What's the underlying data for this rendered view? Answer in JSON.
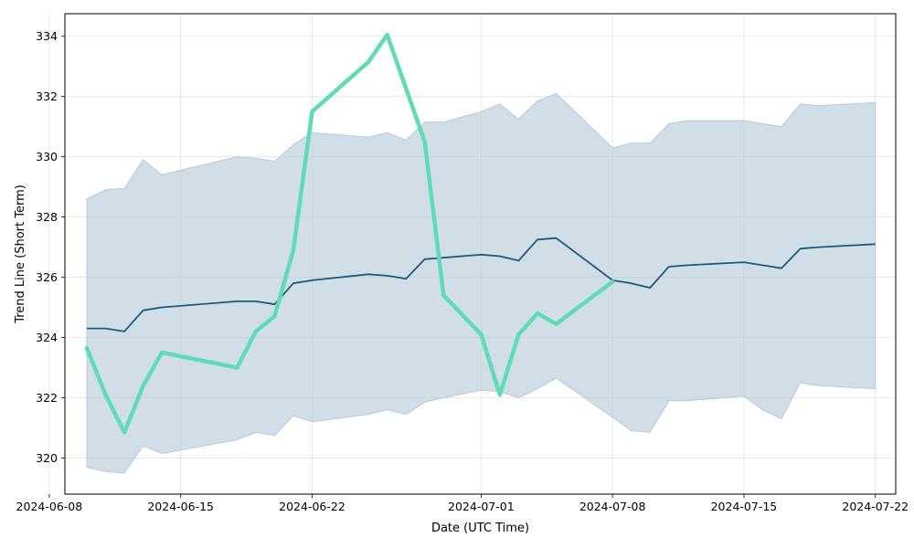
{
  "chart_data": {
    "type": "line",
    "title": "",
    "xlabel": "Date (UTC Time)",
    "ylabel": "Trend Line (Short Term)",
    "xlim": [
      "2024-06-08T20:00",
      "2024-07-23T02:00"
    ],
    "ylim": [
      318.8,
      334.75
    ],
    "grid": true,
    "x_ticks": [
      "2024-06-08",
      "2024-06-15",
      "2024-06-22",
      "2024-07-01",
      "2024-07-08",
      "2024-07-15",
      "2024-07-22"
    ],
    "y_ticks": [
      320,
      322,
      324,
      326,
      328,
      330,
      332,
      334
    ],
    "colors": {
      "band": "#b7cad8",
      "trend": "#1c5a7e",
      "actual": "#5fdcb5"
    },
    "series": [
      {
        "role": "band",
        "x": [
          "2024-06-10",
          "2024-06-11",
          "2024-06-12",
          "2024-06-13",
          "2024-06-14",
          "2024-06-18",
          "2024-06-19",
          "2024-06-20",
          "2024-06-21",
          "2024-06-22",
          "2024-06-25",
          "2024-06-26",
          "2024-06-27",
          "2024-06-28",
          "2024-06-29",
          "2024-07-01",
          "2024-07-02",
          "2024-07-03",
          "2024-07-04",
          "2024-07-05",
          "2024-07-08",
          "2024-07-09",
          "2024-07-10",
          "2024-07-11",
          "2024-07-12",
          "2024-07-15",
          "2024-07-16",
          "2024-07-17",
          "2024-07-18",
          "2024-07-19",
          "2024-07-22"
        ],
        "upper": [
          328.6,
          328.9,
          328.95,
          329.9,
          329.4,
          330.0,
          329.95,
          329.85,
          330.4,
          330.8,
          330.65,
          330.8,
          330.55,
          331.15,
          331.15,
          331.5,
          331.75,
          331.25,
          331.85,
          332.1,
          330.3,
          330.45,
          330.45,
          331.1,
          331.2,
          331.2,
          331.1,
          331.0,
          331.75,
          331.7,
          331.8
        ],
        "lower": [
          319.7,
          319.55,
          319.5,
          320.4,
          320.15,
          320.6,
          320.85,
          320.75,
          321.4,
          321.2,
          321.45,
          321.6,
          321.45,
          321.85,
          322.0,
          322.25,
          322.2,
          322.0,
          322.3,
          322.65,
          321.35,
          320.9,
          320.85,
          321.9,
          321.9,
          322.05,
          321.6,
          321.3,
          322.5,
          322.4,
          322.3
        ]
      },
      {
        "role": "trend",
        "x": [
          "2024-06-10",
          "2024-06-11",
          "2024-06-12",
          "2024-06-13",
          "2024-06-14",
          "2024-06-18",
          "2024-06-19",
          "2024-06-20",
          "2024-06-21",
          "2024-06-22",
          "2024-06-25",
          "2024-06-26",
          "2024-06-27",
          "2024-06-28",
          "2024-06-29",
          "2024-07-01",
          "2024-07-02",
          "2024-07-03",
          "2024-07-04",
          "2024-07-05",
          "2024-07-08",
          "2024-07-09",
          "2024-07-10",
          "2024-07-11",
          "2024-07-12",
          "2024-07-15",
          "2024-07-16",
          "2024-07-17",
          "2024-07-18",
          "2024-07-19",
          "2024-07-22"
        ],
        "values": [
          324.3,
          324.3,
          324.2,
          324.9,
          325.0,
          325.2,
          325.2,
          325.1,
          325.8,
          325.9,
          326.1,
          326.05,
          325.95,
          326.6,
          326.65,
          326.75,
          326.7,
          326.55,
          327.25,
          327.3,
          325.9,
          325.8,
          325.65,
          326.35,
          326.4,
          326.5,
          326.4,
          326.3,
          326.95,
          327.0,
          327.1
        ]
      },
      {
        "role": "actual",
        "x": [
          "2024-06-10",
          "2024-06-11",
          "2024-06-12",
          "2024-06-13",
          "2024-06-14",
          "2024-06-18",
          "2024-06-19",
          "2024-06-20",
          "2024-06-21",
          "2024-06-22",
          "2024-06-25",
          "2024-06-26",
          "2024-06-28",
          "2024-06-29",
          "2024-07-01",
          "2024-07-02",
          "2024-07-03",
          "2024-07-04",
          "2024-07-05",
          "2024-07-08"
        ],
        "values": [
          323.65,
          322.1,
          320.85,
          322.4,
          323.5,
          323.0,
          324.2,
          324.7,
          326.9,
          331.5,
          333.15,
          334.05,
          330.5,
          325.4,
          324.1,
          322.1,
          324.1,
          324.8,
          324.45,
          325.85
        ]
      }
    ]
  }
}
